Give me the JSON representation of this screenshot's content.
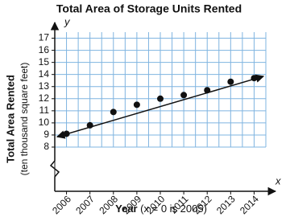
{
  "chart_data": {
    "type": "scatter",
    "title": "Total Area of Storage Units Rented",
    "ylabel": "Total Area Rented",
    "ylabel_note": "(ten thousand square feet)",
    "xlabel": "Year",
    "xlabel_note": "(x = 0 is 2005)",
    "x_axis_name": "x",
    "y_axis_name": "y",
    "x": [
      2006,
      2007,
      2008,
      2009,
      2010,
      2011,
      2012,
      2013,
      2014
    ],
    "values": [
      9.1,
      9.8,
      10.9,
      11.5,
      12.0,
      12.3,
      12.7,
      13.4,
      13.7
    ],
    "color": "#111111",
    "trend_line": {
      "x": [
        2005.6,
        2014.4
      ],
      "y": [
        8.85,
        13.85
      ],
      "color": "#111111"
    },
    "xlim": [
      2005.5,
      2014.5
    ],
    "ylim": [
      8,
      17.5
    ],
    "xticks": [
      2006,
      2007,
      2008,
      2009,
      2010,
      2011,
      2012,
      2013,
      2014
    ],
    "yticks": [
      8,
      9,
      10,
      11,
      12,
      13,
      14,
      15,
      16,
      17
    ],
    "xgrid": [
      2005.5,
      2006,
      2006.5,
      2007,
      2007.5,
      2008,
      2008.5,
      2009,
      2009.5,
      2010,
      2010.5,
      2011,
      2011.5,
      2012,
      2012.5,
      2013,
      2013.5,
      2014,
      2014.5
    ],
    "grid": true,
    "grid_color": "#7fb4e0",
    "axis_break": true
  }
}
